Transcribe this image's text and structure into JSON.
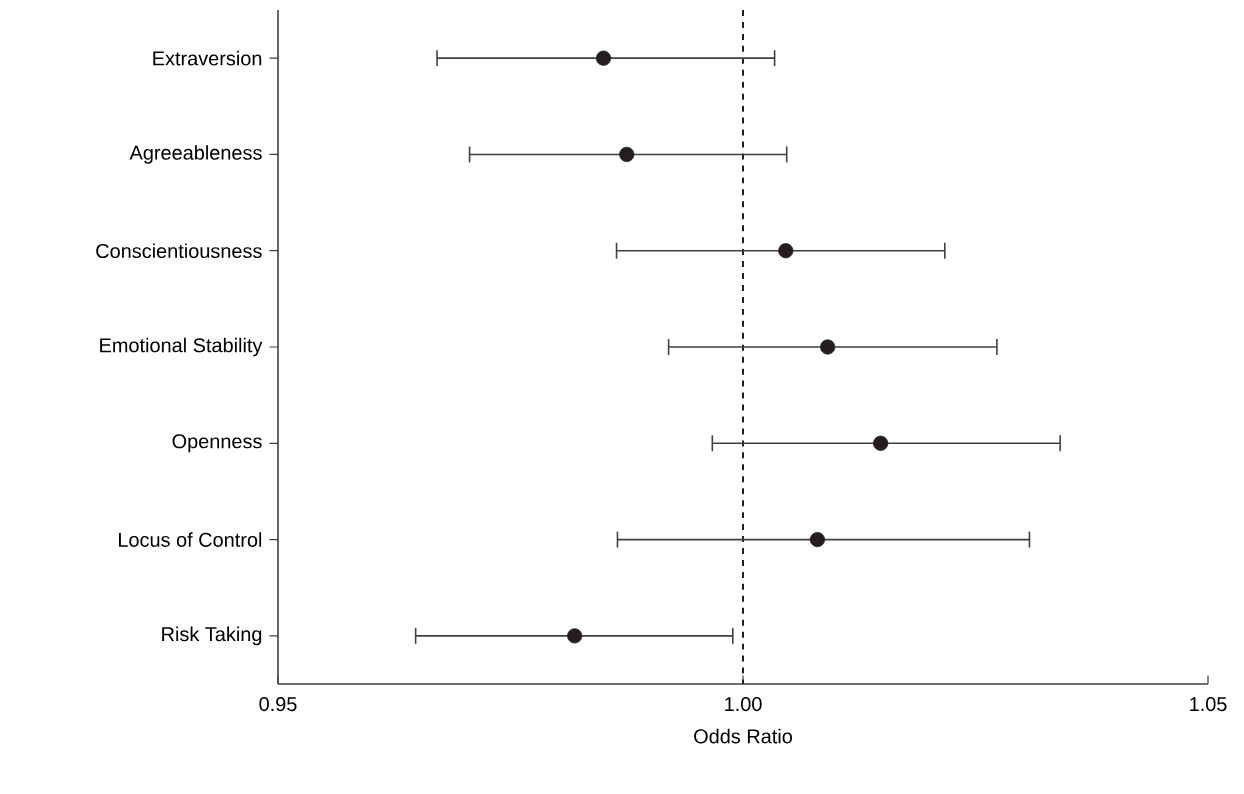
{
  "chart_data": {
    "type": "scatter",
    "orientation": "horizontal",
    "xlabel": "Odds Ratio",
    "categories": [
      "Extraversion",
      "Agreeableness",
      "Conscientiousness",
      "Emotional Stability",
      "Openness",
      "Locus of Control",
      "Risk Taking"
    ],
    "values": [
      0.985,
      0.9875,
      1.0046,
      1.0091,
      1.0148,
      1.008,
      0.9819
    ],
    "errors": [
      [
        0.9671,
        1.0034
      ],
      [
        0.9706,
        1.0047
      ],
      [
        0.9864,
        1.0217
      ],
      [
        0.992,
        1.0273
      ],
      [
        0.9967,
        1.0341
      ],
      [
        0.9865,
        1.0308
      ],
      [
        0.9648,
        0.9989
      ]
    ],
    "color": "#231f20",
    "marker": "circle",
    "xlim": [
      0.95,
      1.05
    ],
    "xticks": [
      {
        "value": 0.95,
        "label": "0.95"
      },
      {
        "value": 1.0,
        "label": "1.00"
      },
      {
        "value": 1.05,
        "label": "1.05"
      }
    ],
    "ref_lines": [
      {
        "axis": "x",
        "value": 1.0,
        "color": "#231f20",
        "line_style": "dashed"
      }
    ],
    "grid": false
  }
}
